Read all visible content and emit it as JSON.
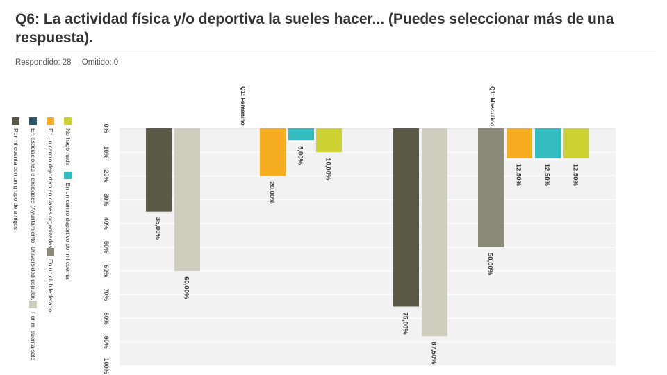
{
  "question": {
    "title": "Q6: La actividad física y/o deportiva la sueles hacer... (Puedes seleccionar más de una respuesta).",
    "answered": "Respondido: 28",
    "skipped": "Omitido: 0"
  },
  "chart_data": {
    "type": "bar",
    "orientation": "rotated 90° clockwise",
    "title": "",
    "xlabel": "",
    "ylabel": "",
    "ylim": [
      0,
      100
    ],
    "grid": true,
    "yticks": [
      "0%",
      "10%",
      "20%",
      "30%",
      "40%",
      "50%",
      "60%",
      "70%",
      "80%",
      "90%",
      "100%"
    ],
    "legend_position": "left",
    "legend": [
      {
        "label": "No hago nada",
        "color": "#ccd232"
      },
      {
        "label": "En un centro deportivo por mi cuenta",
        "color": "#33bcc0"
      },
      {
        "label": "En un centro deportivo en clases organizadas",
        "color": "#f6ad20"
      },
      {
        "label": "En un club federado",
        "color": "#8a8a79"
      },
      {
        "label": "En asociaciones o entidades (Ayuntamiento, Universidad popular...)",
        "color": "#2e5a6e"
      },
      {
        "label": "Por mi cuenta solo",
        "color": "#cfcdbe"
      },
      {
        "label": "Por mi cuenta con un grupo de amigos",
        "color": "#5a5a47"
      }
    ],
    "groups": [
      {
        "label": "Q1: Femenino",
        "bars": [
          {
            "series": "Por mi cuenta con un grupo de amigos",
            "value": 35.0,
            "label": "35,00%",
            "color": "#5a5a47"
          },
          {
            "series": "Por mi cuenta solo",
            "value": 60.0,
            "label": "60,00%",
            "color": "#cfcdbe"
          },
          {
            "series": "En un centro deportivo en clases organizadas",
            "value": 20.0,
            "label": "20,00%",
            "color": "#f6ad20"
          },
          {
            "series": "En un centro deportivo por mi cuenta",
            "value": 5.0,
            "label": "5,00%",
            "color": "#33bcc0"
          },
          {
            "series": "No hago nada",
            "value": 10.0,
            "label": "10,00%",
            "color": "#ccd232"
          }
        ]
      },
      {
        "label": "Q1: Masculino",
        "bars": [
          {
            "series": "Por mi cuenta con un grupo de amigos",
            "value": 75.0,
            "label": "75,00%",
            "color": "#5a5a47"
          },
          {
            "series": "Por mi cuenta solo",
            "value": 87.5,
            "label": "87,50%",
            "color": "#cfcdbe"
          },
          {
            "series": "En un club federado",
            "value": 50.0,
            "label": "50,00%",
            "color": "#8a8a79"
          },
          {
            "series": "En un centro deportivo en clases organizadas",
            "value": 12.5,
            "label": "12,50%",
            "color": "#f6ad20"
          },
          {
            "series": "En un centro deportivo por mi cuenta",
            "value": 12.5,
            "label": "12,50%",
            "color": "#33bcc0"
          },
          {
            "series": "No hago nada",
            "value": 12.5,
            "label": "12,50%",
            "color": "#ccd232"
          }
        ]
      }
    ]
  }
}
